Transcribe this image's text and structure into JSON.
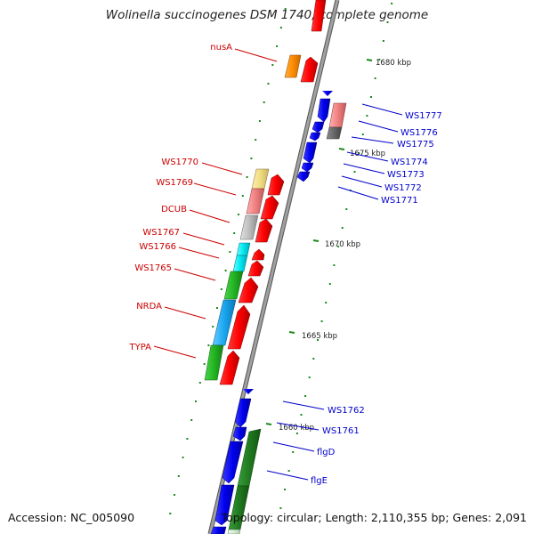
{
  "title": "Wolinella succinogenes DSM 1740, complete genome",
  "footer": {
    "accession": "Accession: NC_005090",
    "summary": "Topology: circular; Length: 2,110,355 bp; Genes: 2,091"
  },
  "scale_ticks": [
    "1680 kbp",
    "1675 kbp",
    "1670 kbp",
    "1665 kbp",
    "1660 kbp"
  ],
  "left_labels": [
    "nusA",
    "WS1770",
    "WS1769",
    "DCUB",
    "WS1767",
    "WS1766",
    "WS1765",
    "NRDA",
    "TYPA"
  ],
  "right_labels": [
    "WS1777",
    "WS1776",
    "WS1775",
    "WS1774",
    "WS1773",
    "WS1772",
    "WS1771",
    "WS1762",
    "WS1761",
    "flgD",
    "flgE"
  ],
  "colors": {
    "backbone": "#8c8c8c",
    "forward_gene": "#ff0000",
    "reverse_gene": "#0000ff",
    "label_red": "#cc0000",
    "label_blue": "#0000cc",
    "ring_dash": "#1a8a1a"
  }
}
